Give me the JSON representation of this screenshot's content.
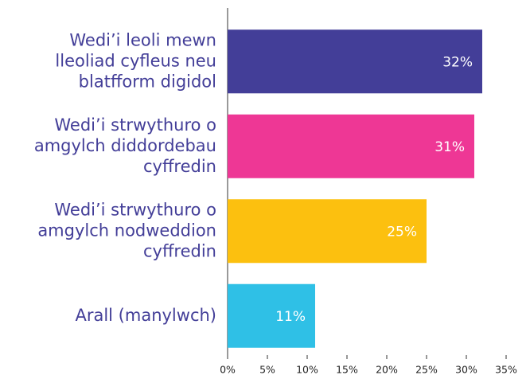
{
  "chart_data": {
    "type": "bar",
    "orientation": "horizontal",
    "categories": [
      "Wedi’i leoli mewn\nlleoliad cyfleus neu\nblatfform digidol",
      "Wedi’i strwythuro o\namgylch diddordebau\ncyffredin",
      "Wedi’i strwythuro o\namgylch nodweddion\ncyffredin",
      "Arall (manylwch)"
    ],
    "values": [
      32,
      31,
      25,
      11
    ],
    "value_labels": [
      "32%",
      "31%",
      "25%",
      "11%"
    ],
    "colors": [
      "#433e98",
      "#ee3795",
      "#fcc00f",
      "#2fc0e6"
    ],
    "xlim": [
      0,
      35
    ],
    "xticks": [
      {
        "value": 0,
        "label": "0%"
      },
      {
        "value": 5,
        "label": "5%"
      },
      {
        "value": 10,
        "label": "10%"
      },
      {
        "value": 15,
        "label": "15%"
      },
      {
        "value": 20,
        "label": "20%"
      },
      {
        "value": 25,
        "label": "25%"
      },
      {
        "value": 30,
        "label": "30%"
      },
      {
        "value": 35,
        "label": "35%"
      }
    ]
  }
}
